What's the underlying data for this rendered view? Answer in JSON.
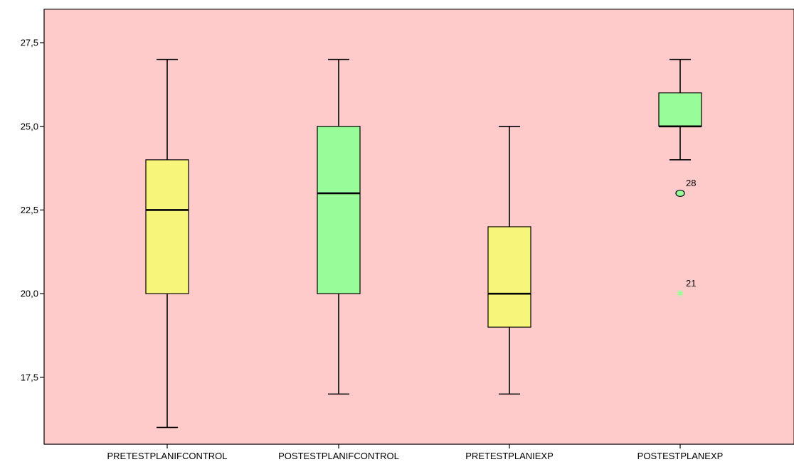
{
  "chart_data": {
    "type": "boxplot",
    "title": "",
    "xlabel": "",
    "ylabel": "",
    "ylim": [
      15.5,
      28.5
    ],
    "yticks": [
      17.5,
      20.0,
      22.5,
      25.0,
      27.5
    ],
    "ytick_labels": [
      "17,5",
      "20,0",
      "22,5",
      "25,0",
      "27,5"
    ],
    "grid": false,
    "legend": "none",
    "plot_background": "#ffcaca",
    "categories": [
      "PRETESTPLANIFCONTROL",
      "POSTESTPLANIFCONTROL",
      "PRETESTPLANIEXP",
      "POSTESTPLANEXP"
    ],
    "boxes": [
      {
        "category": "PRETESTPLANIFCONTROL",
        "whisker_low": 16,
        "q1": 20,
        "median": 22.5,
        "q3": 24,
        "whisker_high": 27,
        "color": "#f7f57a",
        "outliers": []
      },
      {
        "category": "POSTESTPLANIFCONTROL",
        "whisker_low": 17,
        "q1": 20,
        "median": 23,
        "q3": 25,
        "whisker_high": 27,
        "color": "#98fc98",
        "outliers": []
      },
      {
        "category": "PRETESTPLANIEXP",
        "whisker_low": 17,
        "q1": 19,
        "median": 20,
        "q3": 22,
        "whisker_high": 25,
        "color": "#f7f57a",
        "outliers": []
      },
      {
        "category": "POSTESTPLANEXP",
        "whisker_low": 24,
        "q1": 25,
        "median": 25,
        "q3": 26,
        "whisker_high": 27,
        "color": "#98fc98",
        "outliers": [
          {
            "value": 23,
            "label": "28",
            "marker": "circle"
          },
          {
            "value": 20,
            "label": "21",
            "marker": "star"
          }
        ]
      }
    ]
  }
}
